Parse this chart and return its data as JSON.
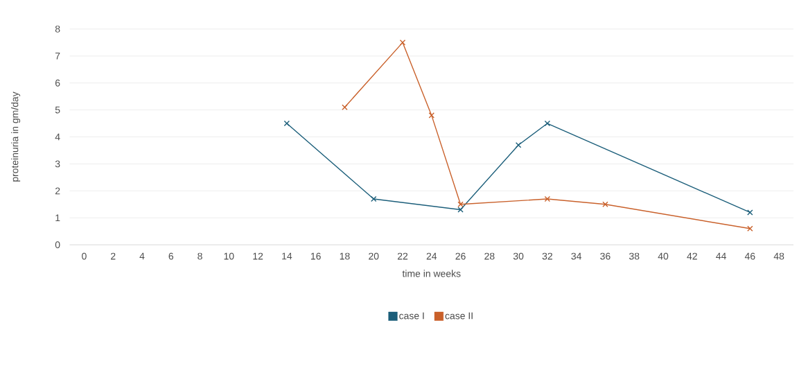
{
  "chart_data": {
    "type": "line",
    "xlabel": "time in weeks",
    "ylabel": "proteinuria in gm/day",
    "categories": [
      "0",
      "2",
      "4",
      "6",
      "8",
      "10",
      "12",
      "14",
      "16",
      "18",
      "20",
      "22",
      "24",
      "26",
      "28",
      "30",
      "32",
      "34",
      "36",
      "38",
      "40",
      "42",
      "44",
      "46",
      "48"
    ],
    "series": [
      {
        "name": "case I",
        "color": "#1b5e7a",
        "values": [
          null,
          null,
          null,
          null,
          null,
          null,
          null,
          4.5,
          null,
          null,
          1.7,
          null,
          null,
          1.3,
          null,
          3.7,
          4.5,
          null,
          null,
          null,
          null,
          null,
          null,
          1.2,
          null
        ]
      },
      {
        "name": "case II",
        "color": "#c9602a",
        "values": [
          null,
          null,
          null,
          null,
          null,
          null,
          null,
          null,
          null,
          5.1,
          null,
          7.5,
          4.8,
          1.5,
          null,
          null,
          1.7,
          null,
          1.5,
          null,
          null,
          null,
          null,
          0.6,
          null
        ]
      }
    ],
    "ylim": [
      0,
      8
    ],
    "yticks": [
      0,
      1,
      2,
      3,
      4,
      5,
      6,
      7,
      8
    ],
    "grid": "y",
    "legend": "bottom",
    "marker": "cross",
    "line_style": "solid"
  }
}
